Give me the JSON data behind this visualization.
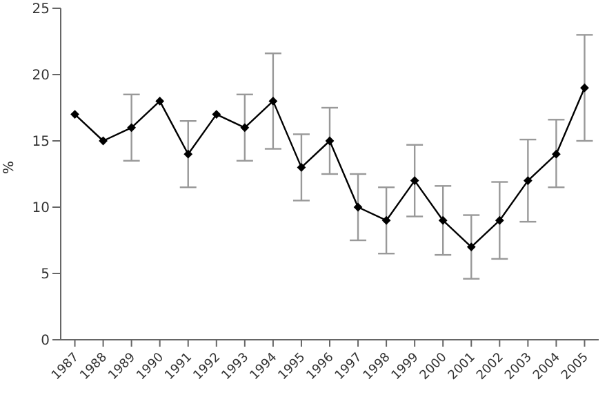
{
  "chart_data": {
    "type": "line",
    "ylabel": "%",
    "categories": [
      "1987",
      "1988",
      "1989",
      "1990",
      "1991",
      "1992",
      "1993",
      "1994",
      "1995",
      "1996",
      "1997",
      "1998",
      "1999",
      "2000",
      "2001",
      "2002",
      "2003",
      "2004",
      "2005"
    ],
    "series": [
      {
        "color": "#000000",
        "values": [
          17,
          15,
          16,
          18,
          14,
          17,
          16,
          18,
          13,
          15,
          10,
          9,
          12,
          9,
          7,
          9,
          12,
          14,
          19
        ],
        "errors": [
          null,
          null,
          [
            13.5,
            18.5
          ],
          null,
          [
            11.5,
            16.5
          ],
          null,
          [
            13.5,
            18.5
          ],
          [
            14.4,
            21.6
          ],
          [
            10.5,
            15.5
          ],
          [
            12.5,
            17.5
          ],
          [
            7.5,
            12.5
          ],
          [
            6.5,
            11.5
          ],
          [
            9.3,
            14.7
          ],
          [
            6.4,
            11.6
          ],
          [
            4.6,
            9.4
          ],
          [
            6.1,
            11.9
          ],
          [
            8.9,
            15.1
          ],
          [
            11.5,
            16.6
          ],
          [
            15,
            23
          ]
        ]
      }
    ],
    "ylim": [
      0,
      25
    ],
    "yticks": [
      0,
      5,
      10,
      15,
      20,
      25
    ],
    "grid": false,
    "legend": false,
    "marker": "diamond",
    "line_style": "solid"
  }
}
